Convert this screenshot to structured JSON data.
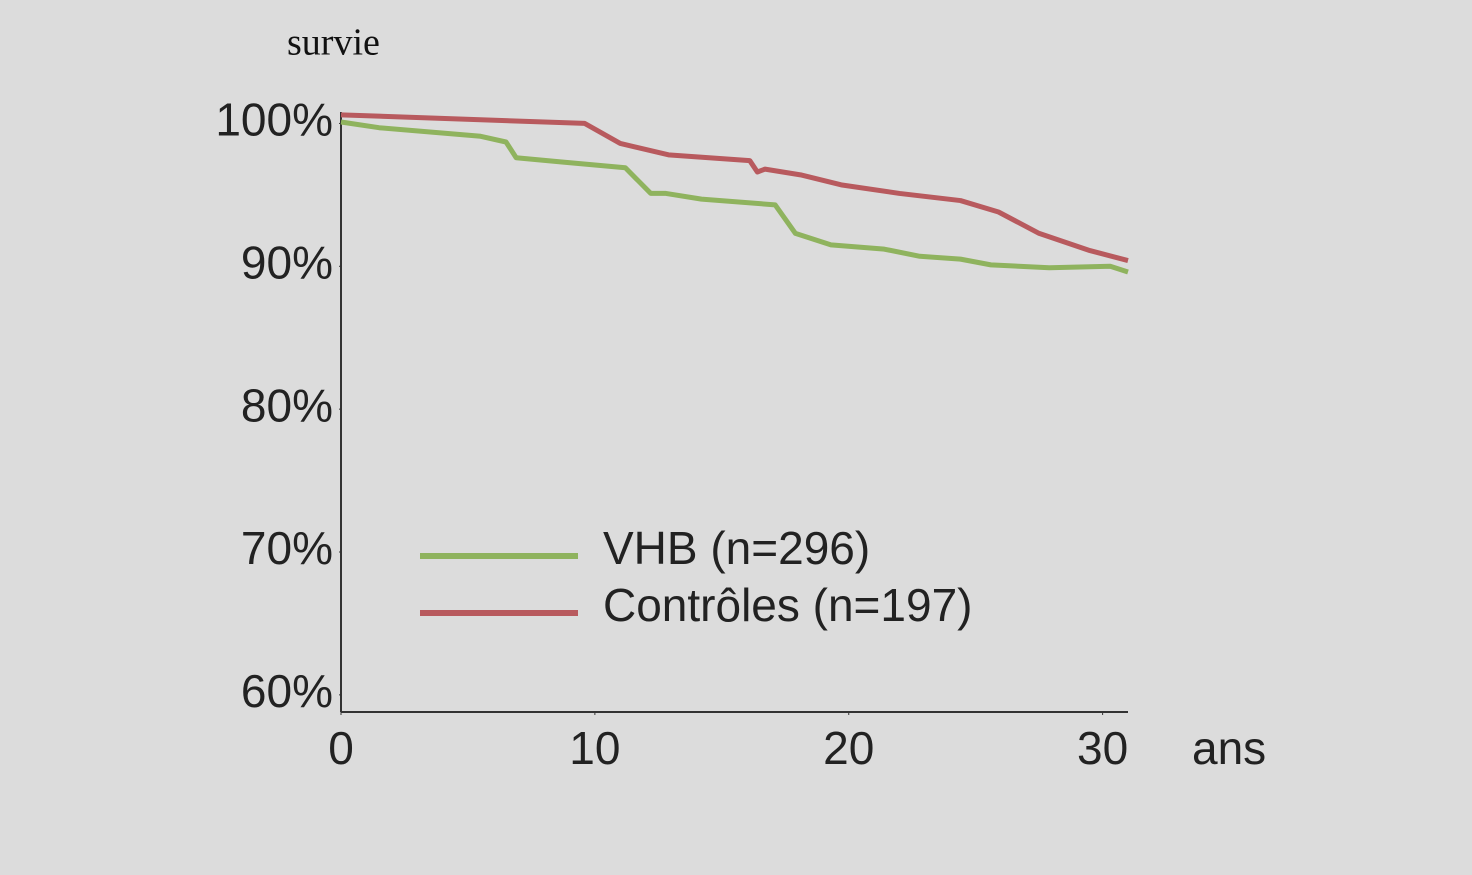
{
  "chart_data": {
    "type": "line",
    "y_label": "survie",
    "x_label": "ans",
    "xlim": [
      0,
      31
    ],
    "xticks": [
      0,
      10,
      20,
      30
    ],
    "ylim": [
      58.8,
      100.8
    ],
    "yticks": [
      {
        "value": 60,
        "label": "60%"
      },
      {
        "value": 70,
        "label": "70%"
      },
      {
        "value": 80,
        "label": "80%"
      },
      {
        "value": 90,
        "label": "90%"
      },
      {
        "value": 100,
        "label": "100%"
      }
    ],
    "legend": "center",
    "series": [
      {
        "name": "VHB (n=296)",
        "color": "#8fb35e",
        "x": [
          0,
          1.5,
          5.5,
          6.5,
          6.9,
          8.7,
          11.2,
          12.2,
          12.8,
          14.2,
          17.1,
          17.9,
          19.3,
          21.4,
          22.8,
          24.4,
          25.6,
          27.9,
          30.3,
          31
        ],
        "values": [
          100.1,
          99.7,
          99.1,
          98.7,
          97.6,
          97.3,
          96.9,
          95.1,
          95.1,
          94.7,
          94.3,
          92.3,
          91.5,
          91.2,
          90.7,
          90.5,
          90.1,
          89.9,
          90.0,
          89.6
        ]
      },
      {
        "name": "Contrôles (n=197)",
        "color": "#b85a5e",
        "x": [
          0,
          9.6,
          11.0,
          12.9,
          16.1,
          16.4,
          16.7,
          18.1,
          19.7,
          22.0,
          24.4,
          25.9,
          27.5,
          29.5,
          31
        ],
        "values": [
          100.6,
          100.0,
          98.6,
          97.8,
          97.4,
          96.6,
          96.8,
          96.4,
          95.7,
          95.1,
          94.6,
          93.8,
          92.3,
          91.1,
          90.4
        ]
      }
    ]
  }
}
